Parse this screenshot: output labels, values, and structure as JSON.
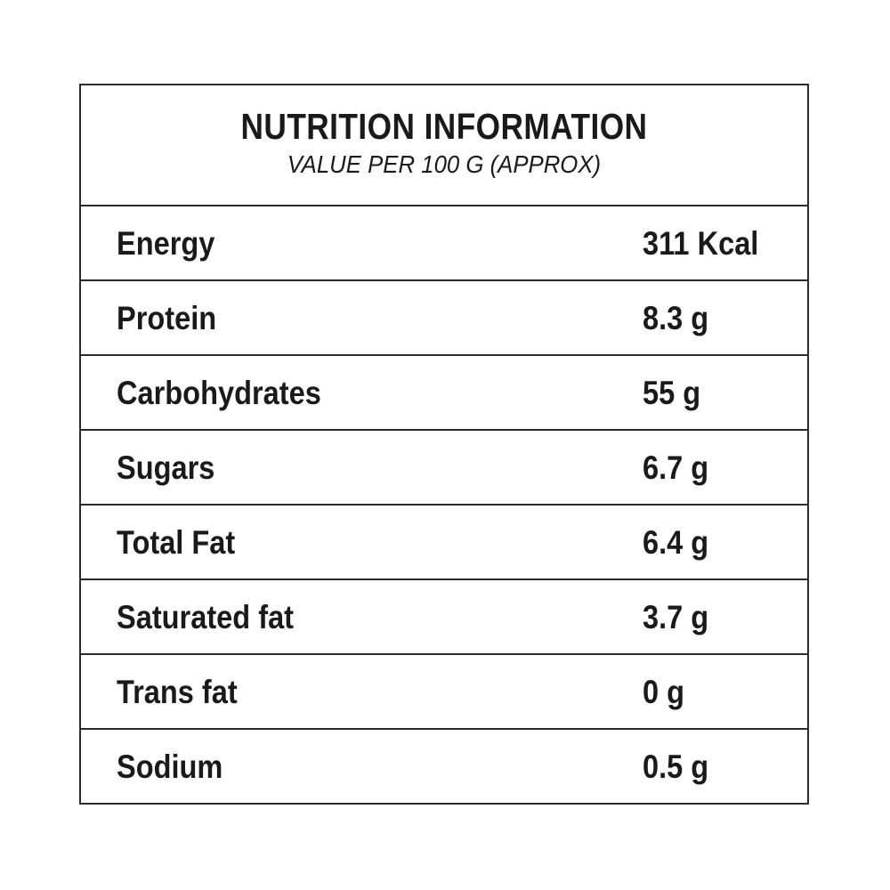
{
  "header": {
    "title": "NUTRITION INFORMATION",
    "subtitle": "VALUE PER 100 G (APPROX)"
  },
  "rows": [
    {
      "label": "Energy",
      "value": "311 Kcal"
    },
    {
      "label": "Protein",
      "value": "8.3 g"
    },
    {
      "label": "Carbohydrates",
      "value": "55 g"
    },
    {
      "label": "Sugars",
      "value": "6.7 g"
    },
    {
      "label": "Total Fat",
      "value": "6.4 g"
    },
    {
      "label": "Saturated fat",
      "value": "3.7 g"
    },
    {
      "label": "Trans fat",
      "value": "0 g"
    },
    {
      "label": "Sodium",
      "value": "0.5 g"
    }
  ]
}
